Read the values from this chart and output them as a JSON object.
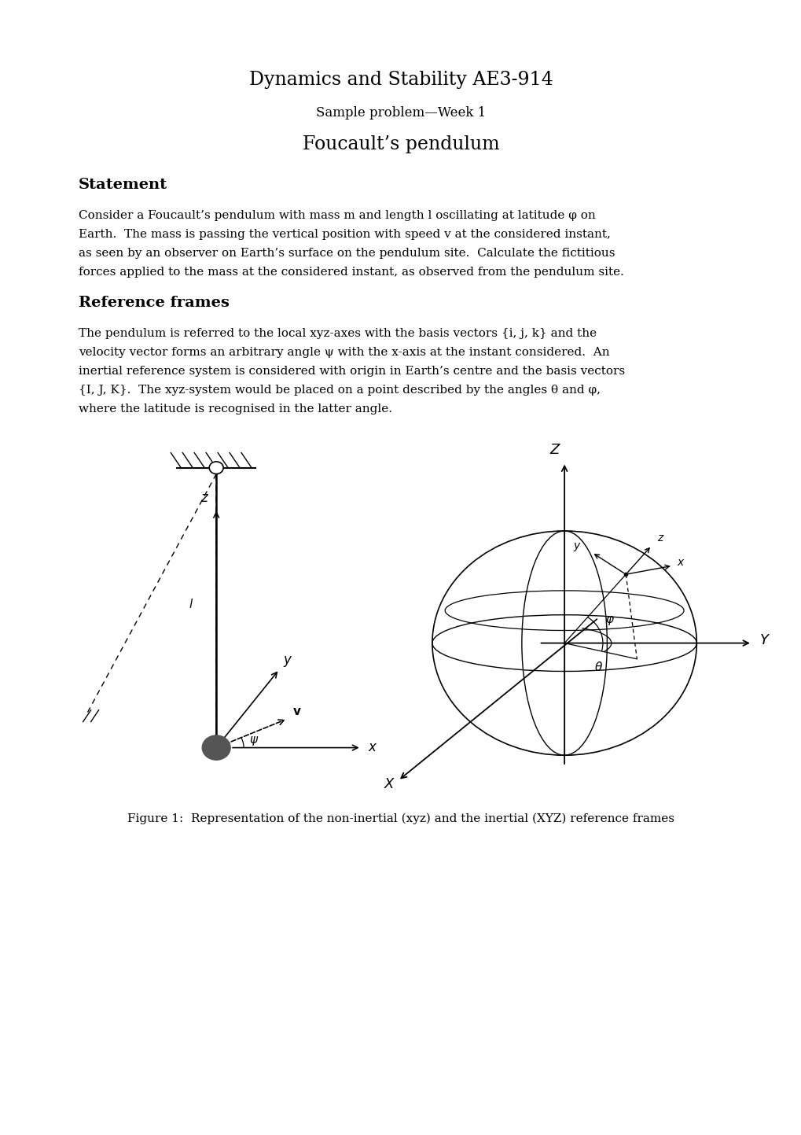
{
  "title": "Dynamics and Stability AE3-914",
  "subtitle": "Sample problem—Week 1",
  "doc_title": "Foucault’s pendulum",
  "section1": "Statement",
  "para1_lines": [
    "Consider a Foucault’s pendulum with mass m and length l oscillating at latitude φ on",
    "Earth.  The mass is passing the vertical position with speed v at the considered instant,",
    "as seen by an observer on Earth’s surface on the pendulum site.  Calculate the fictitious",
    "forces applied to the mass at the considered instant, as observed from the pendulum site."
  ],
  "section2": "Reference frames",
  "para2_lines": [
    "The pendulum is referred to the local xyz-axes with the basis vectors {i, j, k} and the",
    "velocity vector forms an arbitrary angle ψ with the x-axis at the instant considered.  An",
    "inertial reference system is considered with origin in Earth’s centre and the basis vectors",
    "{I, J, K}.  The xyz-system would be placed on a point described by the angles θ and φ,",
    "where the latitude is recognised in the latter angle."
  ],
  "fig_caption": "Figure 1:  Representation of the non-inertial (xyz) and the inertial (XYZ) reference frames",
  "bg_color": "#ffffff",
  "text_color": "#000000"
}
